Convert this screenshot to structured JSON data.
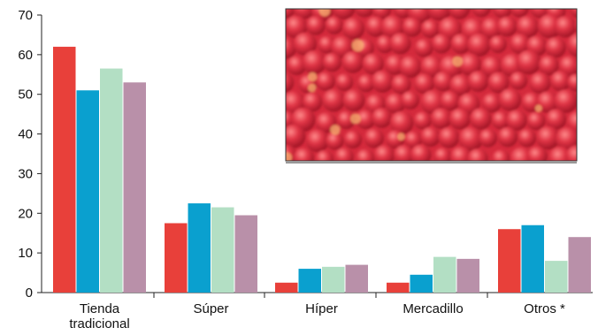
{
  "chart_data": {
    "type": "bar",
    "title": "",
    "xlabel": "",
    "ylabel": "",
    "ylim": [
      0,
      70
    ],
    "yticks": [
      0,
      10,
      20,
      30,
      40,
      50,
      60,
      70
    ],
    "grid": false,
    "categories": [
      [
        "Tienda",
        "tradicional"
      ],
      [
        "Súper"
      ],
      [
        "Híper"
      ],
      [
        "Mercadillo"
      ],
      [
        "Otros *"
      ]
    ],
    "series": [
      {
        "color": "#e8403a",
        "values": [
          62,
          17.5,
          2.5,
          2.5,
          16
        ]
      },
      {
        "color": "#0aa0cf",
        "values": [
          51,
          22.5,
          6,
          4.5,
          17
        ]
      },
      {
        "color": "#b3dfc4",
        "values": [
          56.5,
          21.5,
          6.5,
          9,
          8
        ]
      },
      {
        "color": "#b990a9",
        "values": [
          53,
          19.5,
          7,
          8.5,
          14
        ]
      }
    ]
  },
  "photo": {
    "icon": "red-apples-photo",
    "color": "#d42a3c"
  }
}
